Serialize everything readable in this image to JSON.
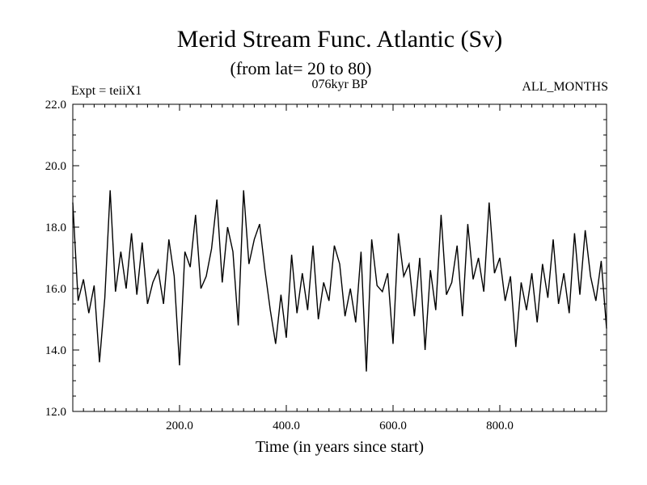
{
  "chart_data": {
    "type": "line",
    "title": "Merid Stream Func. Atlantic (Sv)",
    "subtitle": "(from lat= 20 to 80)",
    "left_note": "Expt = teiiX1",
    "center_note": "076kyr BP",
    "right_note": "ALL_MONTHS",
    "xlabel": "Time (in years since start)",
    "ylabel": "",
    "xlim": [
      0,
      1000
    ],
    "ylim": [
      12,
      22
    ],
    "x_ticks": [
      200,
      400,
      600,
      800
    ],
    "x_tick_labels": [
      "200.0",
      "400.0",
      "600.0",
      "800.0"
    ],
    "y_ticks": [
      12,
      14,
      16,
      18,
      20,
      22
    ],
    "y_tick_labels": [
      "12.0",
      "14.0",
      "16.0",
      "18.0",
      "20.0",
      "22.0"
    ],
    "grid": false,
    "line_color": "#000000",
    "series": [
      {
        "x": [
          0,
          10,
          20,
          30,
          40,
          50,
          60,
          70,
          80,
          90,
          100,
          110,
          120,
          130,
          140,
          150,
          160,
          170,
          180,
          190,
          200,
          210,
          220,
          230,
          240,
          250,
          260,
          270,
          280,
          290,
          300,
          310,
          320,
          330,
          340,
          350,
          360,
          370,
          380,
          390,
          400,
          410,
          420,
          430,
          440,
          450,
          460,
          470,
          480,
          490,
          500,
          510,
          520,
          530,
          540,
          550,
          560,
          570,
          580,
          590,
          600,
          610,
          620,
          630,
          640,
          650,
          660,
          670,
          680,
          690,
          700,
          710,
          720,
          730,
          740,
          750,
          760,
          770,
          780,
          790,
          800,
          810,
          820,
          830,
          840,
          850,
          860,
          870,
          880,
          890,
          900,
          910,
          920,
          930,
          940,
          950,
          960,
          970,
          980,
          990,
          1000
        ],
        "values": [
          18.8,
          15.6,
          16.3,
          15.2,
          16.1,
          13.6,
          15.7,
          19.2,
          15.9,
          17.2,
          16.0,
          17.8,
          15.8,
          17.5,
          15.5,
          16.2,
          16.6,
          15.5,
          17.6,
          16.4,
          13.5,
          17.2,
          16.7,
          18.4,
          16.0,
          16.4,
          17.3,
          18.9,
          16.2,
          18.0,
          17.2,
          14.8,
          19.2,
          16.8,
          17.6,
          18.1,
          16.6,
          15.3,
          14.2,
          15.8,
          14.4,
          17.1,
          15.2,
          16.5,
          15.3,
          17.4,
          15.0,
          16.2,
          15.6,
          17.4,
          16.8,
          15.1,
          16.0,
          14.9,
          17.2,
          13.3,
          17.6,
          16.1,
          15.9,
          16.5,
          14.2,
          17.8,
          16.4,
          16.8,
          15.1,
          17.0,
          14.0,
          16.6,
          15.3,
          18.4,
          15.8,
          16.2,
          17.4,
          15.1,
          18.1,
          16.3,
          17.0,
          15.9,
          18.8,
          16.5,
          17.0,
          15.6,
          16.4,
          14.1,
          16.2,
          15.3,
          16.5,
          14.9,
          16.8,
          15.7,
          17.6,
          15.5,
          16.5,
          15.2,
          17.8,
          15.8,
          17.9,
          16.4,
          15.6,
          16.9,
          14.7
        ]
      }
    ]
  }
}
